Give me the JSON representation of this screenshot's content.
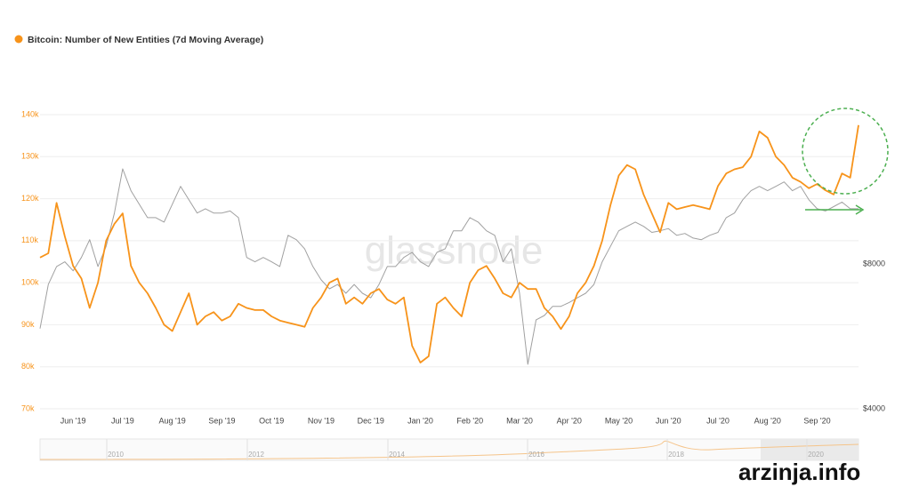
{
  "chart_data": {
    "type": "line",
    "title": "Bitcoin: Number of New Entities (7d Moving Average)",
    "watermark": "glassnode",
    "categories": [
      null,
      null,
      null,
      null,
      "Jun '19",
      null,
      null,
      null,
      null,
      null,
      "Jul '19",
      null,
      null,
      null,
      null,
      null,
      "Aug '19",
      null,
      null,
      null,
      null,
      null,
      "Sep '19",
      null,
      null,
      null,
      null,
      null,
      "Oct '19",
      null,
      null,
      null,
      null,
      null,
      "Nov '19",
      null,
      null,
      null,
      null,
      null,
      "Dec '19",
      null,
      null,
      null,
      null,
      null,
      "Jan '20",
      null,
      null,
      null,
      null,
      null,
      "Feb '20",
      null,
      null,
      null,
      null,
      null,
      "Mar '20",
      null,
      null,
      null,
      null,
      null,
      "Apr '20",
      null,
      null,
      null,
      null,
      null,
      "May '20",
      null,
      null,
      null,
      null,
      null,
      "Jun '20",
      null,
      null,
      null,
      null,
      null,
      "Jul '20",
      null,
      null,
      null,
      null,
      null,
      "Aug '20",
      null,
      null,
      null,
      null,
      null,
      "Sep '20",
      null,
      null,
      null,
      null,
      null
    ],
    "series": [
      {
        "color": "#a0a0a0",
        "axis": "y2",
        "values": [
          5870,
          7250,
          7900,
          8080,
          7740,
          8250,
          8980,
          7900,
          8700,
          10200,
          12600,
          11350,
          10640,
          9980,
          9980,
          9770,
          10640,
          11590,
          10870,
          10200,
          10410,
          10200,
          10200,
          10300,
          9980,
          8250,
          8080,
          8250,
          8080,
          7900,
          9170,
          8980,
          8600,
          7900,
          7410,
          7100,
          7250,
          6950,
          7250,
          6950,
          6800,
          7250,
          7900,
          7900,
          8250,
          8450,
          8080,
          7900,
          8450,
          8600,
          9370,
          9370,
          9980,
          9770,
          9370,
          9170,
          8080,
          8600,
          6950,
          4950,
          6120,
          6250,
          6530,
          6530,
          6650,
          6800,
          6950,
          7250,
          8080,
          8700,
          9370,
          9570,
          9770,
          9570,
          9300,
          9370,
          9470,
          9170,
          9250,
          9050,
          8980,
          9170,
          9300,
          9980,
          10200,
          10870,
          11350,
          11590,
          11350,
          11590,
          11840,
          11350,
          11590,
          10870,
          10410,
          10300,
          10520,
          10750,
          10410,
          10410
        ]
      },
      {
        "color": "#f7931a",
        "values": [
          106000,
          107000,
          119000,
          111000,
          104000,
          101000,
          94000,
          100000,
          110000,
          114000,
          116500,
          104000,
          100000,
          97500,
          94000,
          90000,
          88500,
          93000,
          97500,
          90000,
          92000,
          93000,
          91000,
          92000,
          95000,
          94000,
          93500,
          93500,
          92000,
          91000,
          90500,
          90000,
          89500,
          94000,
          96500,
          100000,
          101000,
          95000,
          96500,
          95000,
          97500,
          98500,
          96000,
          95000,
          96500,
          85000,
          81000,
          82500,
          95000,
          96500,
          94000,
          92000,
          100000,
          103000,
          104000,
          101000,
          97500,
          96500,
          100000,
          98500,
          98500,
          94000,
          92000,
          89000,
          92000,
          97500,
          100000,
          104000,
          110000,
          118500,
          125500,
          128000,
          127000,
          121000,
          116500,
          112000,
          119000,
          117500,
          118000,
          118500,
          118000,
          117500,
          123000,
          126000,
          127000,
          127500,
          130000,
          136000,
          134500,
          130000,
          128000,
          125000,
          124000,
          122500,
          123500,
          122000,
          121000,
          126000,
          125000,
          137500
        ]
      }
    ],
    "ylim": [
      70000,
      140000
    ],
    "yticks": [
      {
        "value": 70000,
        "label": "70k"
      },
      {
        "value": 80000,
        "label": "80k"
      },
      {
        "value": 90000,
        "label": "90k"
      },
      {
        "value": 100000,
        "label": "100k"
      },
      {
        "value": 110000,
        "label": "110k"
      },
      {
        "value": 120000,
        "label": "120k"
      },
      {
        "value": 130000,
        "label": "130k"
      },
      {
        "value": 140000,
        "label": "140k"
      }
    ],
    "y2lim": [
      4000,
      16330
    ],
    "y2log": true,
    "y2ticks": [
      {
        "value": 4000,
        "label": "$4000"
      },
      {
        "value": 8000,
        "label": "$8000"
      }
    ],
    "grid": true,
    "navigator": [
      "2010",
      "2012",
      "2014",
      "2016",
      "2018",
      "2020"
    ]
  },
  "footer": {
    "site": "arzinja.info"
  }
}
